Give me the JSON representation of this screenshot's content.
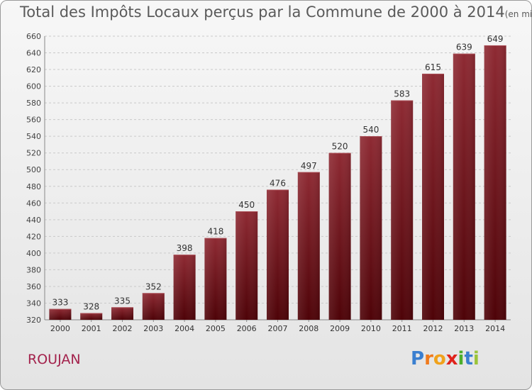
{
  "chart_data": {
    "type": "bar",
    "title": "Total des Impôts Locaux perçus par la Commune de 2000 à 2014",
    "unit": "(en milliers d'€)",
    "categories": [
      "2000",
      "2001",
      "2002",
      "2003",
      "2004",
      "2005",
      "2006",
      "2007",
      "2008",
      "2009",
      "2010",
      "2011",
      "2012",
      "2013",
      "2014"
    ],
    "values": [
      333,
      328,
      335,
      352,
      398,
      418,
      450,
      476,
      497,
      520,
      540,
      583,
      615,
      639,
      649
    ],
    "ylim": [
      320,
      660
    ],
    "yticks": [
      320,
      340,
      360,
      380,
      400,
      420,
      440,
      460,
      480,
      500,
      520,
      540,
      560,
      580,
      600,
      620,
      640,
      660
    ],
    "grid": true,
    "bar_color": "#7a1a22"
  },
  "commune": "ROUJAN",
  "brand": {
    "letters": [
      "P",
      "r",
      "o",
      "x",
      "i",
      "t",
      "i"
    ],
    "colors": [
      "#3a7fd0",
      "#f07a1c",
      "#f0a21c",
      "#e0231c",
      "#4caf2c",
      "#3a7fd0",
      "#9bc43a"
    ]
  }
}
